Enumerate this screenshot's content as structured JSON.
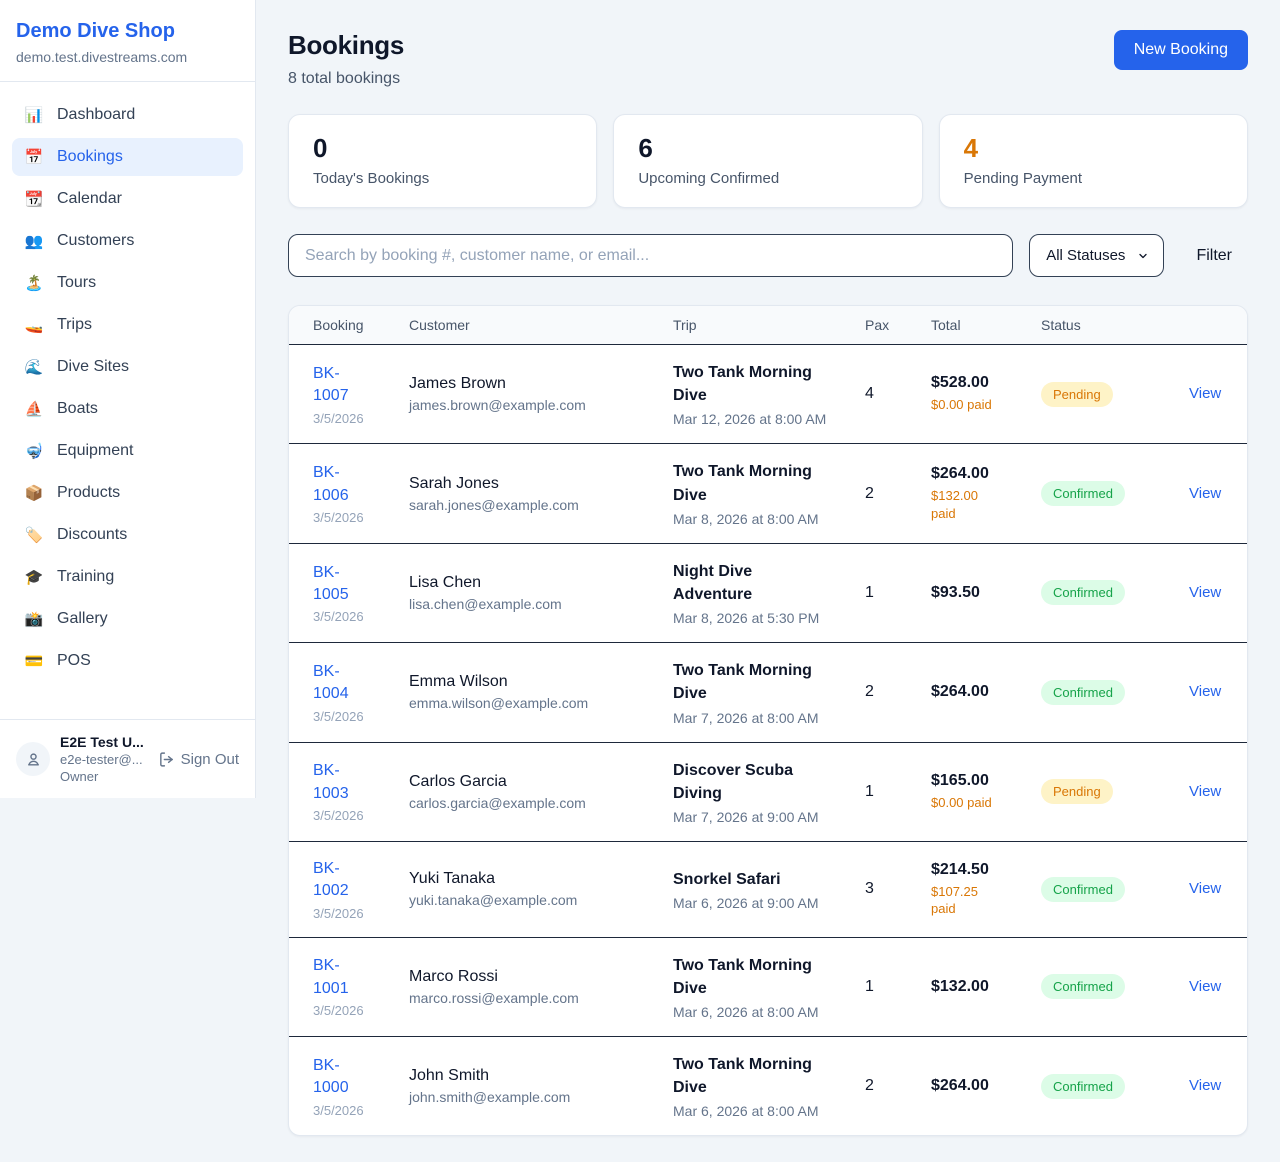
{
  "colors": {
    "accent": "#2563eb",
    "page_background": "#f1f5f9",
    "pending_text": "#d97706",
    "pending_bg": "#fef3c7",
    "confirmed_text": "#16a34a",
    "confirmed_bg": "#dcfce7"
  },
  "sidebar": {
    "brand": "Demo Dive Shop",
    "domain": "demo.test.divestreams.com",
    "nav": [
      {
        "label": "Dashboard",
        "icon": "📊",
        "icon_name": "bar-chart-icon",
        "active": false
      },
      {
        "label": "Bookings",
        "icon": "📅",
        "icon_name": "calendar-icon",
        "active": true
      },
      {
        "label": "Calendar",
        "icon": "📆",
        "icon_name": "tear-off-calendar-icon",
        "active": false
      },
      {
        "label": "Customers",
        "icon": "👥",
        "icon_name": "people-icon",
        "active": false
      },
      {
        "label": "Tours",
        "icon": "🏝️",
        "icon_name": "island-icon",
        "active": false
      },
      {
        "label": "Trips",
        "icon": "🚤",
        "icon_name": "speedboat-icon",
        "active": false
      },
      {
        "label": "Dive Sites",
        "icon": "🌊",
        "icon_name": "wave-icon",
        "active": false
      },
      {
        "label": "Boats",
        "icon": "⛵",
        "icon_name": "sailboat-icon",
        "active": false
      },
      {
        "label": "Equipment",
        "icon": "🤿",
        "icon_name": "diving-mask-icon",
        "active": false
      },
      {
        "label": "Products",
        "icon": "📦",
        "icon_name": "package-icon",
        "active": false
      },
      {
        "label": "Discounts",
        "icon": "🏷️",
        "icon_name": "tag-icon",
        "active": false
      },
      {
        "label": "Training",
        "icon": "🎓",
        "icon_name": "graduation-cap-icon",
        "active": false
      },
      {
        "label": "Gallery",
        "icon": "📸",
        "icon_name": "camera-icon",
        "active": false
      },
      {
        "label": "POS",
        "icon": "💳",
        "icon_name": "credit-card-icon",
        "active": false
      }
    ],
    "user": {
      "name": "E2E Test U...",
      "email": "e2e-tester@...",
      "role": "Owner",
      "sign_out_label": "Sign Out"
    }
  },
  "header": {
    "title": "Bookings",
    "subtitle": "8 total bookings",
    "new_booking_label": "New Booking"
  },
  "stats": [
    {
      "value": "0",
      "label": "Today's Bookings",
      "color": "#0f172a"
    },
    {
      "value": "6",
      "label": "Upcoming Confirmed",
      "color": "#0f172a"
    },
    {
      "value": "4",
      "label": "Pending Payment",
      "color": "#d97706"
    }
  ],
  "filters": {
    "search_placeholder": "Search by booking #, customer name, or email...",
    "status_selected": "All Statuses",
    "filter_label": "Filter"
  },
  "table": {
    "columns": [
      "Booking",
      "Customer",
      "Trip",
      "Pax",
      "Total",
      "Status"
    ],
    "view_label": "View",
    "status_styles": {
      "Pending": {
        "bg": "#fef3c7",
        "fg": "#d97706"
      },
      "Confirmed": {
        "bg": "#dcfce7",
        "fg": "#16a34a"
      }
    },
    "rows": [
      {
        "number": "BK-1007",
        "date": "3/5/2026",
        "customer": "James Brown",
        "email": "james.brown@example.com",
        "trip": "Two Tank Morning Dive",
        "datetime": "Mar 12, 2026 at 8:00 AM",
        "pax": "4",
        "total": "$528.00",
        "paid": "$0.00 paid",
        "status": "Pending"
      },
      {
        "number": "BK-1006",
        "date": "3/5/2026",
        "customer": "Sarah Jones",
        "email": "sarah.jones@example.com",
        "trip": "Two Tank Morning Dive",
        "datetime": "Mar 8, 2026 at 8:00 AM",
        "pax": "2",
        "total": "$264.00",
        "paid": "$132.00 paid",
        "status": "Confirmed"
      },
      {
        "number": "BK-1005",
        "date": "3/5/2026",
        "customer": "Lisa Chen",
        "email": "lisa.chen@example.com",
        "trip": "Night Dive Adventure",
        "datetime": "Mar 8, 2026 at 5:30 PM",
        "pax": "1",
        "total": "$93.50",
        "paid": null,
        "status": "Confirmed"
      },
      {
        "number": "BK-1004",
        "date": "3/5/2026",
        "customer": "Emma Wilson",
        "email": "emma.wilson@example.com",
        "trip": "Two Tank Morning Dive",
        "datetime": "Mar 7, 2026 at 8:00 AM",
        "pax": "2",
        "total": "$264.00",
        "paid": null,
        "status": "Confirmed"
      },
      {
        "number": "BK-1003",
        "date": "3/5/2026",
        "customer": "Carlos Garcia",
        "email": "carlos.garcia@example.com",
        "trip": "Discover Scuba Diving",
        "datetime": "Mar 7, 2026 at 9:00 AM",
        "pax": "1",
        "total": "$165.00",
        "paid": "$0.00 paid",
        "status": "Pending"
      },
      {
        "number": "BK-1002",
        "date": "3/5/2026",
        "customer": "Yuki Tanaka",
        "email": "yuki.tanaka@example.com",
        "trip": "Snorkel Safari",
        "datetime": "Mar 6, 2026 at 9:00 AM",
        "pax": "3",
        "total": "$214.50",
        "paid": "$107.25 paid",
        "status": "Confirmed"
      },
      {
        "number": "BK-1001",
        "date": "3/5/2026",
        "customer": "Marco Rossi",
        "email": "marco.rossi@example.com",
        "trip": "Two Tank Morning Dive",
        "datetime": "Mar 6, 2026 at 8:00 AM",
        "pax": "1",
        "total": "$132.00",
        "paid": null,
        "status": "Confirmed"
      },
      {
        "number": "BK-1000",
        "date": "3/5/2026",
        "customer": "John Smith",
        "email": "john.smith@example.com",
        "trip": "Two Tank Morning Dive",
        "datetime": "Mar 6, 2026 at 8:00 AM",
        "pax": "2",
        "total": "$264.00",
        "paid": null,
        "status": "Confirmed"
      }
    ]
  }
}
